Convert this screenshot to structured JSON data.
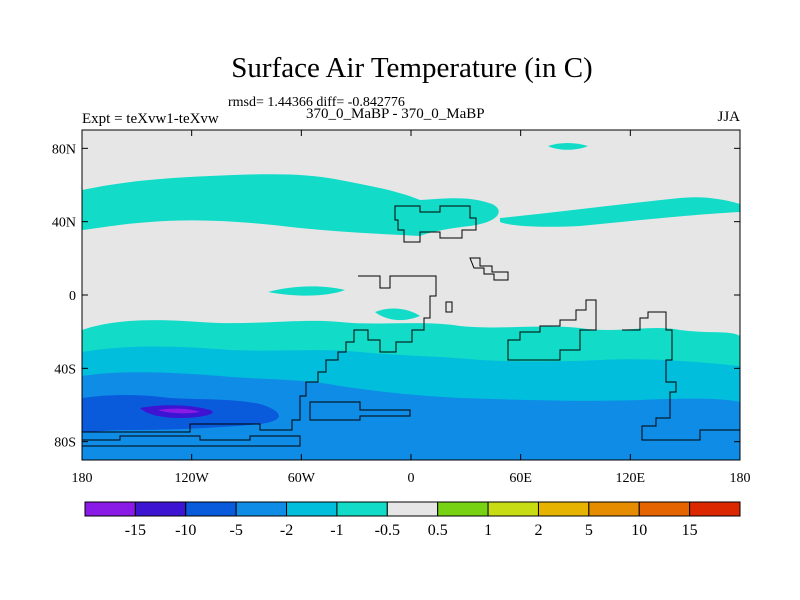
{
  "title": "Surface Air Temperature (in C)",
  "stats_line": "rmsd= 1.44366 diff= -0.842776",
  "left_label": "Expt = teXvw1-teXvw",
  "center_label": "370_0_MaBP - 370_0_MaBP",
  "right_label": "JJA",
  "map": {
    "lon_range": [
      -180,
      180
    ],
    "lat_range": [
      -90,
      90
    ],
    "lon_ticks": [
      {
        "value": -180,
        "label": "180"
      },
      {
        "value": -120,
        "label": "120W"
      },
      {
        "value": -60,
        "label": "60W"
      },
      {
        "value": 0,
        "label": "0"
      },
      {
        "value": 60,
        "label": "60E"
      },
      {
        "value": 120,
        "label": "120E"
      },
      {
        "value": 180,
        "label": "180"
      }
    ],
    "lat_ticks": [
      {
        "value": 80,
        "label": "80N"
      },
      {
        "value": 40,
        "label": "40N"
      },
      {
        "value": 0,
        "label": "0"
      },
      {
        "value": -40,
        "label": "40S"
      },
      {
        "value": -80,
        "label": "80S"
      }
    ],
    "background_color": "#e6e6e6"
  },
  "colorbar": {
    "colors": [
      "#8a1ae6",
      "#3c14d2",
      "#0a5adc",
      "#0f8ce6",
      "#00bedc",
      "#12dcc8",
      "#e6e6e6",
      "#78d214",
      "#c8dc14",
      "#e6b400",
      "#e68c00",
      "#e66400",
      "#dc2800"
    ],
    "labels": [
      "-15",
      "-10",
      "-5",
      "-2",
      "-1",
      "-0.5",
      "0.5",
      "1",
      "2",
      "5",
      "10",
      "15"
    ]
  }
}
